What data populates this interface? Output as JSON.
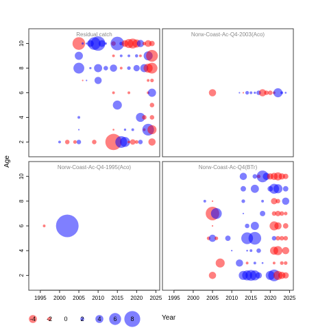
{
  "chart_data": {
    "type": "scatter",
    "subtype": "bubble-residuals",
    "xlabel": "Year",
    "ylabel": "Age",
    "xlim": [
      1992,
      2026
    ],
    "ylim": [
      0.8,
      11.2
    ],
    "x_ticks": [
      1995,
      2000,
      2005,
      2010,
      2015,
      2020,
      2025
    ],
    "y_ticks": [
      2,
      4,
      6,
      8,
      10
    ],
    "colors": {
      "positive": "#0000ff",
      "negative": "#ff0000",
      "panel_border": "#404040",
      "title": "#888888"
    },
    "legend": {
      "position": "bottom-left",
      "entries": [
        {
          "label": "-4",
          "value": -4
        },
        {
          "label": "-2",
          "value": -2
        },
        {
          "label": "0",
          "value": 0
        },
        {
          "label": "2",
          "value": 2
        },
        {
          "label": "4",
          "value": 4
        },
        {
          "label": "6",
          "value": 6
        },
        {
          "label": "8",
          "value": 8
        }
      ]
    },
    "panels": [
      {
        "title": "Residual catch",
        "points": [
          [
            2005,
            10,
            -2.8
          ],
          [
            2006,
            10,
            0.5
          ],
          [
            2007,
            10,
            0.4
          ],
          [
            2008,
            10,
            1.5
          ],
          [
            2009,
            10,
            2.8
          ],
          [
            2010,
            10,
            3.2
          ],
          [
            2011,
            10,
            1.5
          ],
          [
            2012,
            10,
            0.5
          ],
          [
            2014,
            10,
            -1.0
          ],
          [
            2015,
            10,
            3.0
          ],
          [
            2016,
            10,
            0.8
          ],
          [
            2017,
            10,
            -1.5
          ],
          [
            2018,
            10,
            -2.0
          ],
          [
            2019,
            10,
            -2.2
          ],
          [
            2020,
            10,
            -1.8
          ],
          [
            2021,
            10,
            1.6
          ],
          [
            2022,
            10,
            -0.8
          ],
          [
            2023,
            10,
            -1.5
          ],
          [
            2024,
            10,
            -1.2
          ],
          [
            2005,
            9,
            1.8
          ],
          [
            2014,
            9,
            -0.6
          ],
          [
            2016,
            9,
            0.6
          ],
          [
            2018,
            9,
            0.6
          ],
          [
            2020,
            9,
            0.7
          ],
          [
            2021,
            9,
            -0.6
          ],
          [
            2023,
            9,
            2.0
          ],
          [
            2024,
            9,
            -2.6
          ],
          [
            2005,
            8,
            2.4
          ],
          [
            2008,
            8,
            0.5
          ],
          [
            2010,
            8,
            1.8
          ],
          [
            2012,
            8,
            1.0
          ],
          [
            2014,
            8,
            1.6
          ],
          [
            2016,
            8,
            -0.6
          ],
          [
            2018,
            8,
            0.8
          ],
          [
            2020,
            8,
            1.4
          ],
          [
            2022,
            8,
            1.8
          ],
          [
            2023,
            8,
            -2.0
          ],
          [
            2024,
            8,
            -2.4
          ],
          [
            2006,
            7,
            -0.3
          ],
          [
            2007,
            7,
            0.3
          ],
          [
            2010,
            7,
            1.6
          ],
          [
            2023,
            7,
            -0.6
          ],
          [
            2024,
            7,
            -0.8
          ],
          [
            2014,
            6,
            -0.6
          ],
          [
            2018,
            6,
            -0.6
          ],
          [
            2023,
            6,
            -0.6
          ],
          [
            2024,
            6,
            1.8
          ],
          [
            2015,
            5,
            2.0
          ],
          [
            2024,
            5,
            -1.0
          ],
          [
            2005,
            4,
            0.6
          ],
          [
            2021,
            4,
            2.0
          ],
          [
            2022,
            4,
            -1.0
          ],
          [
            2024,
            4,
            -1.0
          ],
          [
            2005,
            3,
            0.3
          ],
          [
            2014,
            3,
            -0.4
          ],
          [
            2017,
            3,
            0.5
          ],
          [
            2019,
            3,
            0.6
          ],
          [
            2022,
            3,
            -0.6
          ],
          [
            2023,
            3,
            2.6
          ],
          [
            2024,
            3,
            -2.0
          ],
          [
            2000,
            2,
            0.6
          ],
          [
            2002,
            2,
            -1.0
          ],
          [
            2004,
            2,
            -0.8
          ],
          [
            2005,
            2,
            1.0
          ],
          [
            2009,
            2,
            -1.0
          ],
          [
            2014,
            2,
            -3.6
          ],
          [
            2016,
            2,
            2.6
          ],
          [
            2017,
            2,
            2.2
          ],
          [
            2018,
            2,
            -0.6
          ],
          [
            2019,
            2,
            -1.2
          ],
          [
            2020,
            2,
            -0.8
          ],
          [
            2021,
            2,
            1.0
          ],
          [
            2024,
            2,
            -1.6
          ]
        ]
      },
      {
        "title": "Norw-Coast-Ac-Q4-2003(Aco)",
        "points": [
          [
            2005,
            6,
            -1.6
          ],
          [
            2012,
            6,
            0.2
          ],
          [
            2013,
            6,
            -0.3
          ],
          [
            2014,
            6,
            0.8
          ],
          [
            2015,
            6,
            0.6
          ],
          [
            2016,
            6,
            0.5
          ],
          [
            2017,
            6,
            1.0
          ],
          [
            2018,
            6,
            -1.6
          ],
          [
            2019,
            6,
            -1.0
          ],
          [
            2020,
            6,
            -1.0
          ],
          [
            2021,
            6,
            -0.6
          ],
          [
            2022,
            6,
            2.0
          ],
          [
            2023,
            6,
            0.6
          ],
          [
            2024,
            6,
            0.4
          ]
        ]
      },
      {
        "title": "Norw-Coast-Ac-Q4-1995(Aco)",
        "points": [
          [
            1996,
            6,
            -0.6
          ],
          [
            2002,
            6,
            5.0
          ]
        ]
      },
      {
        "title": "Norw-Coast-Ac-Q4(BTr)",
        "points": [
          [
            2013,
            10,
            1.6
          ],
          [
            2016,
            10,
            1.0
          ],
          [
            2017,
            10,
            -0.8
          ],
          [
            2018,
            10,
            2.6
          ],
          [
            2019,
            10,
            1.6
          ],
          [
            2020,
            10,
            -1.4
          ],
          [
            2021,
            10,
            -1.6
          ],
          [
            2022,
            10,
            -1.8
          ],
          [
            2023,
            10,
            -1.4
          ],
          [
            2024,
            10,
            -1.2
          ],
          [
            2013,
            9,
            1.2
          ],
          [
            2016,
            9,
            1.8
          ],
          [
            2020,
            9,
            1.2
          ],
          [
            2021,
            9,
            2.2
          ],
          [
            2022,
            9,
            2.0
          ],
          [
            2024,
            9,
            1.2
          ],
          [
            2003,
            8,
            0.6
          ],
          [
            2005,
            8,
            -0.2
          ],
          [
            2013,
            8,
            0.8
          ],
          [
            2018,
            8,
            0.6
          ],
          [
            2021,
            8,
            -1.4
          ],
          [
            2022,
            8,
            -1.0
          ],
          [
            2024,
            8,
            1.6
          ],
          [
            2005,
            7,
            -3.0
          ],
          [
            2006,
            7,
            2.4
          ],
          [
            2013,
            7,
            0.3
          ],
          [
            2018,
            7,
            1.2
          ],
          [
            2021,
            7,
            -1.0
          ],
          [
            2022,
            7,
            -1.2
          ],
          [
            2023,
            7,
            -1.0
          ],
          [
            2024,
            7,
            -0.8
          ],
          [
            2005,
            6,
            -0.2
          ],
          [
            2014,
            6,
            1.0
          ],
          [
            2016,
            6,
            1.8
          ],
          [
            2021,
            6,
            -2.0
          ],
          [
            2022,
            6,
            -1.6
          ],
          [
            2024,
            6,
            -1.2
          ],
          [
            2004,
            5,
            -0.8
          ],
          [
            2005,
            5,
            1.6
          ],
          [
            2006,
            5,
            -0.8
          ],
          [
            2009,
            5,
            1.2
          ],
          [
            2014,
            5,
            2.6
          ],
          [
            2016,
            5,
            2.8
          ],
          [
            2021,
            5,
            1.0
          ],
          [
            2022,
            5,
            -1.0
          ],
          [
            2023,
            5,
            -1.0
          ],
          [
            2024,
            5,
            -1.0
          ],
          [
            2010,
            4,
            0.2
          ],
          [
            2014,
            4,
            0.4
          ],
          [
            2015,
            4,
            0.6
          ],
          [
            2017,
            4,
            1.0
          ],
          [
            2021,
            4,
            -1.8
          ],
          [
            2022,
            4,
            -2.0
          ],
          [
            2024,
            4,
            -1.6
          ],
          [
            2007,
            3,
            -2.0
          ],
          [
            2012,
            3,
            1.6
          ],
          [
            2014,
            3,
            -0.6
          ],
          [
            2016,
            3,
            0.6
          ],
          [
            2018,
            3,
            0.4
          ],
          [
            2021,
            3,
            -0.6
          ],
          [
            2023,
            3,
            -0.8
          ],
          [
            2024,
            3,
            -0.8
          ],
          [
            2005,
            2,
            -1.6
          ],
          [
            2013,
            2,
            2.0
          ],
          [
            2014,
            2,
            2.2
          ],
          [
            2015,
            2,
            2.4
          ],
          [
            2016,
            2,
            2.2
          ],
          [
            2017,
            2,
            1.4
          ],
          [
            2020,
            2,
            2.0
          ],
          [
            2021,
            2,
            2.6
          ],
          [
            2022,
            2,
            -2.0
          ],
          [
            2023,
            2,
            -1.6
          ],
          [
            2024,
            2,
            -1.4
          ]
        ]
      }
    ]
  }
}
